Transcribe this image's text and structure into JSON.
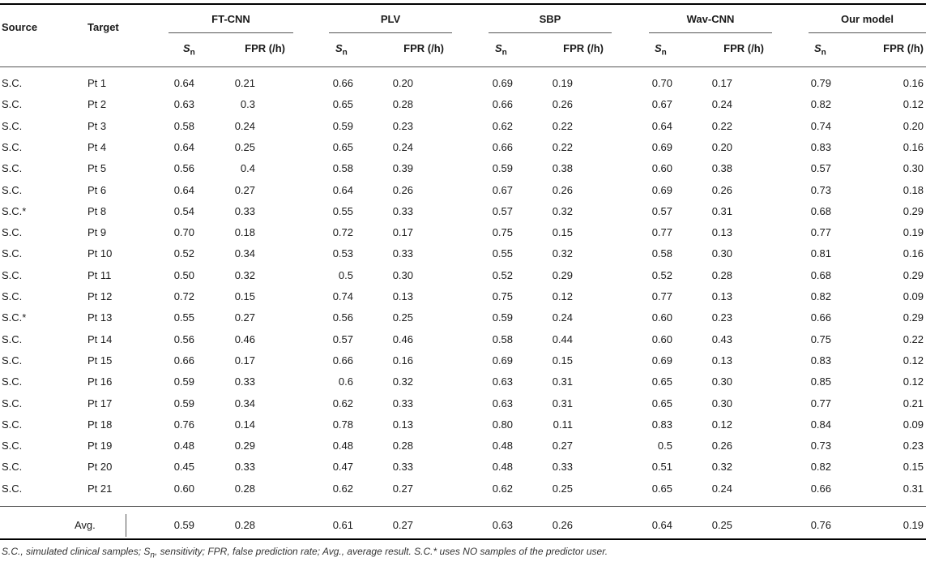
{
  "headers": {
    "source": "Source",
    "target": "Target",
    "groups": [
      "FT-CNN",
      "PLV",
      "SBP",
      "Wav-CNN",
      "Our model"
    ],
    "sn_base": "S",
    "sn_sub": "n",
    "fpr": "FPR (/h)"
  },
  "rows": [
    {
      "source": "S.C.",
      "target": "Pt 1",
      "v": [
        "0.64",
        "0.21",
        "0.66",
        "0.20",
        "0.69",
        "0.19",
        "0.70",
        "0.17",
        "0.79",
        "0.16"
      ]
    },
    {
      "source": "S.C.",
      "target": "Pt 2",
      "v": [
        "0.63",
        "0.3",
        "0.65",
        "0.28",
        "0.66",
        "0.26",
        "0.67",
        "0.24",
        "0.82",
        "0.12"
      ]
    },
    {
      "source": "S.C.",
      "target": "Pt 3",
      "v": [
        "0.58",
        "0.24",
        "0.59",
        "0.23",
        "0.62",
        "0.22",
        "0.64",
        "0.22",
        "0.74",
        "0.20"
      ]
    },
    {
      "source": "S.C.",
      "target": "Pt 4",
      "v": [
        "0.64",
        "0.25",
        "0.65",
        "0.24",
        "0.66",
        "0.22",
        "0.69",
        "0.20",
        "0.83",
        "0.16"
      ]
    },
    {
      "source": "S.C.",
      "target": "Pt 5",
      "v": [
        "0.56",
        "0.4",
        "0.58",
        "0.39",
        "0.59",
        "0.38",
        "0.60",
        "0.38",
        "0.57",
        "0.30"
      ]
    },
    {
      "source": "S.C.",
      "target": "Pt 6",
      "v": [
        "0.64",
        "0.27",
        "0.64",
        "0.26",
        "0.67",
        "0.26",
        "0.69",
        "0.26",
        "0.73",
        "0.18"
      ]
    },
    {
      "source": "S.C.*",
      "target": "Pt 8",
      "v": [
        "0.54",
        "0.33",
        "0.55",
        "0.33",
        "0.57",
        "0.32",
        "0.57",
        "0.31",
        "0.68",
        "0.29"
      ]
    },
    {
      "source": "S.C.",
      "target": "Pt 9",
      "v": [
        "0.70",
        "0.18",
        "0.72",
        "0.17",
        "0.75",
        "0.15",
        "0.77",
        "0.13",
        "0.77",
        "0.19"
      ]
    },
    {
      "source": "S.C.",
      "target": "Pt 10",
      "v": [
        "0.52",
        "0.34",
        "0.53",
        "0.33",
        "0.55",
        "0.32",
        "0.58",
        "0.30",
        "0.81",
        "0.16"
      ]
    },
    {
      "source": "S.C.",
      "target": "Pt 11",
      "v": [
        "0.50",
        "0.32",
        "0.5",
        "0.30",
        "0.52",
        "0.29",
        "0.52",
        "0.28",
        "0.68",
        "0.29"
      ]
    },
    {
      "source": "S.C.",
      "target": "Pt 12",
      "v": [
        "0.72",
        "0.15",
        "0.74",
        "0.13",
        "0.75",
        "0.12",
        "0.77",
        "0.13",
        "0.82",
        "0.09"
      ]
    },
    {
      "source": "S.C.*",
      "target": "Pt 13",
      "v": [
        "0.55",
        "0.27",
        "0.56",
        "0.25",
        "0.59",
        "0.24",
        "0.60",
        "0.23",
        "0.66",
        "0.29"
      ]
    },
    {
      "source": "S.C.",
      "target": "Pt 14",
      "v": [
        "0.56",
        "0.46",
        "0.57",
        "0.46",
        "0.58",
        "0.44",
        "0.60",
        "0.43",
        "0.75",
        "0.22"
      ]
    },
    {
      "source": "S.C.",
      "target": "Pt 15",
      "v": [
        "0.66",
        "0.17",
        "0.66",
        "0.16",
        "0.69",
        "0.15",
        "0.69",
        "0.13",
        "0.83",
        "0.12"
      ]
    },
    {
      "source": "S.C.",
      "target": "Pt 16",
      "v": [
        "0.59",
        "0.33",
        "0.6",
        "0.32",
        "0.63",
        "0.31",
        "0.65",
        "0.30",
        "0.85",
        "0.12"
      ]
    },
    {
      "source": "S.C.",
      "target": "Pt 17",
      "v": [
        "0.59",
        "0.34",
        "0.62",
        "0.33",
        "0.63",
        "0.31",
        "0.65",
        "0.30",
        "0.77",
        "0.21"
      ]
    },
    {
      "source": "S.C.",
      "target": "Pt 18",
      "v": [
        "0.76",
        "0.14",
        "0.78",
        "0.13",
        "0.80",
        "0.11",
        "0.83",
        "0.12",
        "0.84",
        "0.09"
      ]
    },
    {
      "source": "S.C.",
      "target": "Pt 19",
      "v": [
        "0.48",
        "0.29",
        "0.48",
        "0.28",
        "0.48",
        "0.27",
        "0.5",
        "0.26",
        "0.73",
        "0.23"
      ]
    },
    {
      "source": "S.C.",
      "target": "Pt 20",
      "v": [
        "0.45",
        "0.33",
        "0.47",
        "0.33",
        "0.48",
        "0.33",
        "0.51",
        "0.32",
        "0.82",
        "0.15"
      ]
    },
    {
      "source": "S.C.",
      "target": "Pt 21",
      "v": [
        "0.60",
        "0.28",
        "0.62",
        "0.27",
        "0.62",
        "0.25",
        "0.65",
        "0.24",
        "0.66",
        "0.31"
      ]
    }
  ],
  "avg": {
    "label": "Avg.",
    "v": [
      "0.59",
      "0.28",
      "0.61",
      "0.27",
      "0.63",
      "0.26",
      "0.64",
      "0.25",
      "0.76",
      "0.19"
    ]
  },
  "footnote": {
    "part1": "S.C., simulated clinical samples; ",
    "sn_base": "S",
    "sn_sub": "n",
    "part2": ", sensitivity; FPR, false prediction rate; Avg., average result. S.C.* uses NO samples of the predictor user."
  }
}
